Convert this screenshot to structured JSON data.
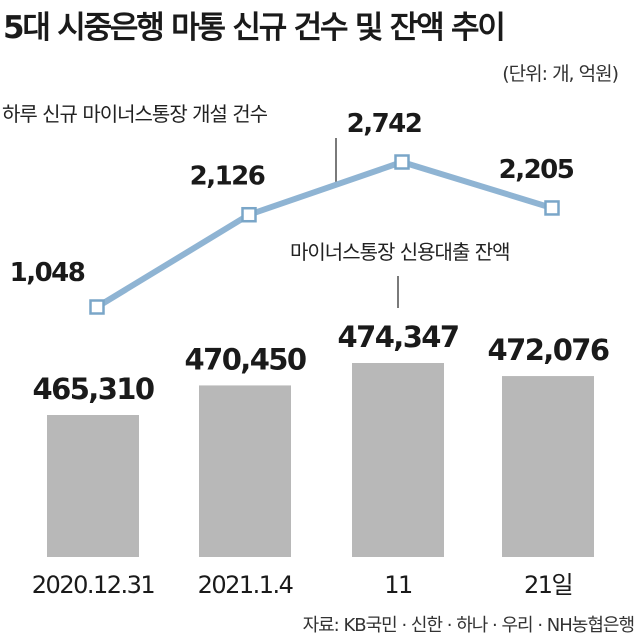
{
  "title": "5대 시중은행 마통 신규 건수 및 잔액 추이",
  "unit": "(단위: 개, 억원)",
  "source": "자료: KB국민 · 신한 · 하나 · 우리 · NH농협은행",
  "colors": {
    "bar": "#b8b8b8",
    "line": "#8fb4d3",
    "marker": "#7aa6c8",
    "marker_fill": "#ffffff"
  },
  "chart_data": [
    {
      "type": "bar",
      "categories": [
        "2020.12.31",
        "2021.1.4",
        "11",
        "21일"
      ],
      "series": [
        {
          "name": "마이너스통장 신용대출 잔액",
          "values": [
            465310,
            470450,
            474347,
            472076
          ]
        }
      ],
      "data_labels": [
        "465,310",
        "470,450",
        "474,347",
        "472,076"
      ]
    },
    {
      "type": "line",
      "categories": [
        "2020.12.31",
        "2021.1.4",
        "11",
        "21일"
      ],
      "series": [
        {
          "name": "하루 신규 마이너스통장 개설 건수",
          "values": [
            1048,
            2126,
            2742,
            2205
          ]
        }
      ],
      "data_labels": [
        "1,048",
        "2,126",
        "2,742",
        "2,205"
      ]
    }
  ]
}
